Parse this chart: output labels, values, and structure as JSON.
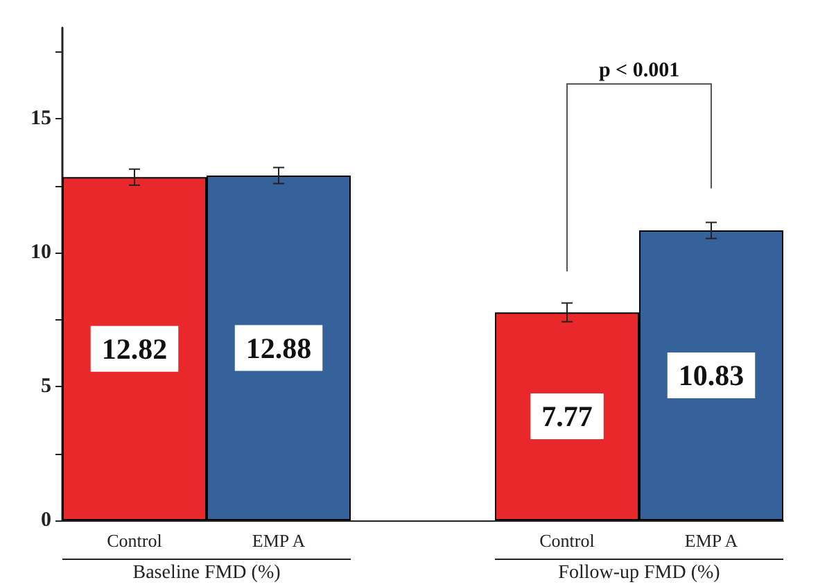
{
  "chart_data": {
    "type": "bar",
    "categories": [
      "Control",
      "EMP A",
      null,
      "Control",
      "EMP A"
    ],
    "values": [
      12.82,
      12.88,
      null,
      7.77,
      10.83
    ],
    "colors": [
      "#e8282a",
      "#35629a",
      "#ffffff",
      "#e8282a",
      "#35629a"
    ],
    "errors": [
      0.3,
      0.3,
      null,
      0.35,
      0.3
    ],
    "data_labels": true,
    "ylim": [
      0,
      18.4
    ],
    "yticks": [
      0,
      {
        "value": 2.5,
        "label": null
      },
      5,
      {
        "value": 7.5,
        "label": null
      },
      10,
      {
        "value": 12.5,
        "label": null
      },
      15,
      {
        "value": 17.5,
        "label": null
      }
    ],
    "annotations": [
      "p < 0.001",
      "Baseline FMD (%)",
      "Follow-up FMD (%)"
    ]
  }
}
